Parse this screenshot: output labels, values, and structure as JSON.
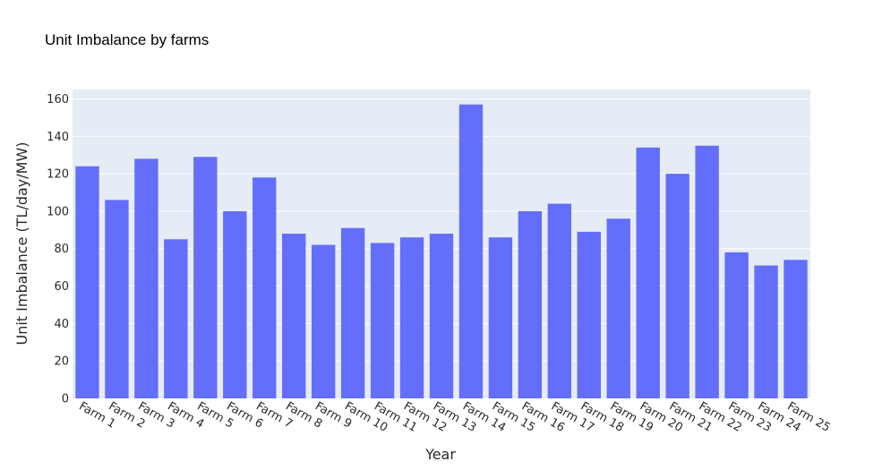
{
  "chart_data": {
    "type": "bar",
    "title": "Unit Imbalance by farms",
    "xlabel": "Year",
    "ylabel": "Unit Imbalance (TL/day/MW)",
    "ylim": [
      0,
      165
    ],
    "yticks": [
      0,
      20,
      40,
      60,
      80,
      100,
      120,
      140,
      160
    ],
    "categories": [
      "Farm 1",
      "Farm 2",
      "Farm 3",
      "Farm 4",
      "Farm 5",
      "Farm 6",
      "Farm 7",
      "Farm 8",
      "Farm 9",
      "Farm 10",
      "Farm 11",
      "Farm 12",
      "Farm 13",
      "Farm 14",
      "Farm 15",
      "Farm 16",
      "Farm 17",
      "Farm 18",
      "Farm 19",
      "Farm 20",
      "Farm 21",
      "Farm 22",
      "Farm 23",
      "Farm 24",
      "Farm 25"
    ],
    "values": [
      124,
      106,
      128,
      85,
      129,
      100,
      118,
      88,
      82,
      91,
      83,
      86,
      88,
      157,
      86,
      100,
      104,
      89,
      96,
      134,
      120,
      135,
      78,
      71,
      74
    ],
    "grid": true,
    "colors": {
      "bar": "#636efa",
      "plot_background": "#e5ecf6",
      "grid": "#ffffff"
    }
  }
}
